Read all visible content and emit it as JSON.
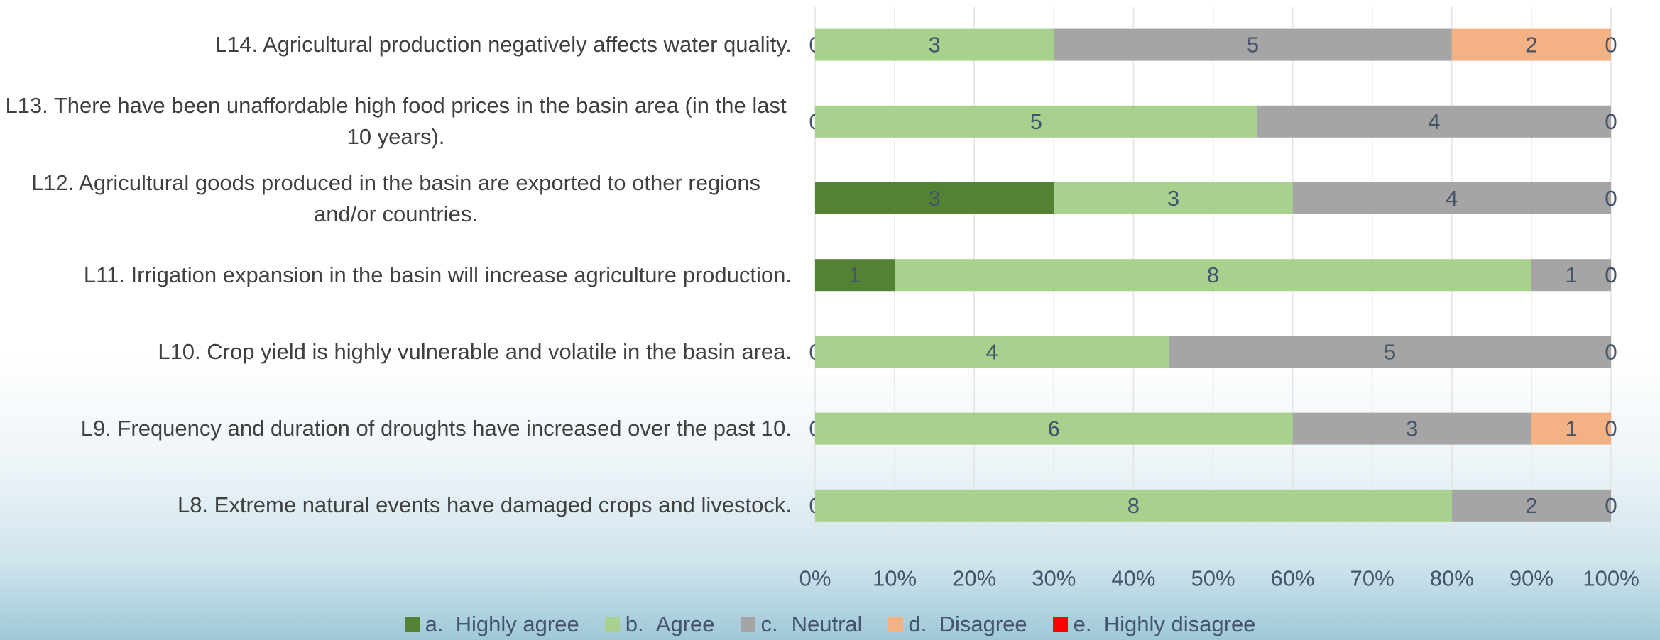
{
  "chart_data": {
    "type": "stacked-bar-percent",
    "orientation": "horizontal",
    "categories": [
      "L14. Agricultural production negatively affects water quality.",
      "L13. There have been unaffordable high food prices in the basin area (in the last 10 years).",
      "L12. Agricultural goods produced in the basin are exported to other regions and/or countries.",
      "L11. Irrigation expansion in the basin will increase agriculture production.",
      "L10. Crop yield is highly vulnerable and volatile in the basin area.",
      "L9. Frequency and duration of droughts have increased over the past 10.",
      "L8. Extreme natural events have damaged crops and livestock."
    ],
    "series": [
      {
        "name": "a.\tHighly agree",
        "color": "#548235",
        "values": [
          0,
          0,
          3,
          1,
          0,
          0,
          0
        ]
      },
      {
        "name": "b.\tAgree",
        "color": "#a9d18e",
        "values": [
          3,
          5,
          3,
          8,
          4,
          6,
          8
        ]
      },
      {
        "name": "c.\tNeutral",
        "color": "#a5a5a5",
        "values": [
          5,
          4,
          4,
          1,
          5,
          3,
          2
        ]
      },
      {
        "name": "d.\tDisagree",
        "color": "#f4b183",
        "values": [
          2,
          0,
          0,
          0,
          0,
          1,
          0
        ]
      },
      {
        "name": "e.\tHighly disagree",
        "color": "#ff0000",
        "values": [
          0,
          0,
          0,
          0,
          0,
          0,
          0
        ]
      }
    ],
    "xlim": [
      0,
      100
    ],
    "xticks": [
      {
        "value": 0,
        "label": "0%"
      },
      {
        "value": 10,
        "label": "10%"
      },
      {
        "value": 20,
        "label": "20%"
      },
      {
        "value": 30,
        "label": "30%"
      },
      {
        "value": 40,
        "label": "40%"
      },
      {
        "value": 50,
        "label": "50%"
      },
      {
        "value": 60,
        "label": "60%"
      },
      {
        "value": 70,
        "label": "70%"
      },
      {
        "value": 80,
        "label": "80%"
      },
      {
        "value": 90,
        "label": "90%"
      },
      {
        "value": 100,
        "label": "100%"
      }
    ],
    "grid": true,
    "legend": "bottom"
  }
}
